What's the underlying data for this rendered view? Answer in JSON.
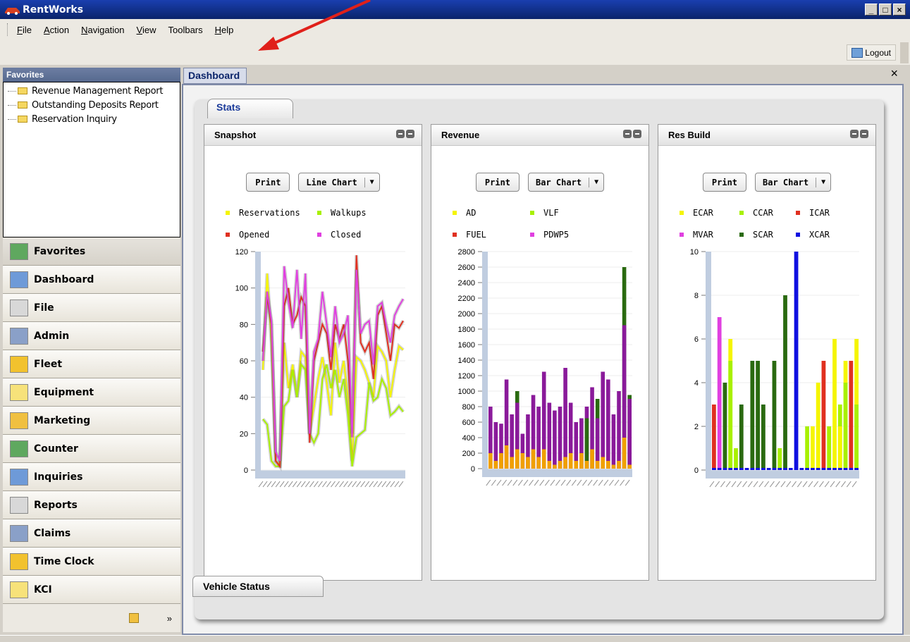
{
  "app": {
    "title": "RentWorks"
  },
  "window_controls": [
    "_",
    "□",
    "×"
  ],
  "menu": [
    {
      "label": "File",
      "u": "F",
      "rest": "ile"
    },
    {
      "label": "Action",
      "u": "A",
      "rest": "ction"
    },
    {
      "label": "Navigation",
      "u": "N",
      "rest": "avigation"
    },
    {
      "label": "View",
      "u": "V",
      "rest": "iew"
    },
    {
      "label": "Toolbars",
      "u": "",
      "rest": "Toolbars"
    },
    {
      "label": "Help",
      "u": "H",
      "rest": "elp"
    }
  ],
  "toolbar": {
    "logout_label": "Logout"
  },
  "favorites": {
    "header": "Favorites",
    "items": [
      "Revenue Management Report",
      "Outstanding Deposits Report",
      "Reservation Inquiry"
    ]
  },
  "nav": [
    {
      "label": "Favorites",
      "icon": "favorites-icon",
      "color": "#5fa85f",
      "active": true
    },
    {
      "label": "Dashboard",
      "icon": "calendar-icon",
      "color": "#6e9ad8"
    },
    {
      "label": "File",
      "icon": "checklist-icon",
      "color": "#d8d8d8"
    },
    {
      "label": "Admin",
      "icon": "user-list-icon",
      "color": "#8aa0c8"
    },
    {
      "label": "Fleet",
      "icon": "folder-icon",
      "color": "#f2c22e"
    },
    {
      "label": "Equipment",
      "icon": "note-icon",
      "color": "#f7e27a"
    },
    {
      "label": "Marketing",
      "icon": "marketing-icon",
      "color": "#f0c040"
    },
    {
      "label": "Counter",
      "icon": "counter-icon",
      "color": "#5fa85f"
    },
    {
      "label": "Inquiries",
      "icon": "calendar-icon",
      "color": "#6e9ad8"
    },
    {
      "label": "Reports",
      "icon": "checklist-icon",
      "color": "#d8d8d8"
    },
    {
      "label": "Claims",
      "icon": "user-list-icon",
      "color": "#8aa0c8"
    },
    {
      "label": "Time Clock",
      "icon": "folder-icon",
      "color": "#f2c22e"
    },
    {
      "label": "KCI",
      "icon": "note-icon",
      "color": "#f7e27a"
    }
  ],
  "nav_bottom": {
    "chevron": "»"
  },
  "main": {
    "tab_label": "Dashboard",
    "close_glyph": "×",
    "stats_tab": "Stats",
    "vehicle_status": "Vehicle Status"
  },
  "cards": [
    {
      "title": "Snapshot",
      "print_label": "Print",
      "chart_type_label": "Line Chart",
      "legend": [
        {
          "name": "Reservations",
          "color": "#f5f500"
        },
        {
          "name": "Walkups",
          "color": "#a8f000"
        },
        {
          "name": "Opened",
          "color": "#e03020"
        },
        {
          "name": "Closed",
          "color": "#e040e0"
        }
      ]
    },
    {
      "title": "Revenue",
      "print_label": "Print",
      "chart_type_label": "Bar Chart",
      "legend": [
        {
          "name": "AD",
          "color": "#f5f500"
        },
        {
          "name": "VLF",
          "color": "#a8f000"
        },
        {
          "name": "FUEL",
          "color": "#e03020"
        },
        {
          "name": "PDWP5",
          "color": "#e040e0"
        }
      ]
    },
    {
      "title": "Res Build",
      "print_label": "Print",
      "chart_type_label": "Bar Chart",
      "legend": [
        {
          "name": "ECAR",
          "color": "#f5f500"
        },
        {
          "name": "CCAR",
          "color": "#a8f000"
        },
        {
          "name": "ICAR",
          "color": "#e03020"
        },
        {
          "name": "MVAR",
          "color": "#e040e0"
        },
        {
          "name": "SCAR",
          "color": "#2a6a10"
        },
        {
          "name": "XCAR",
          "color": "#1010e0"
        }
      ]
    }
  ],
  "chart_data": [
    {
      "type": "line",
      "ylim": [
        0,
        120
      ],
      "yticks": [
        0,
        20,
        40,
        60,
        80,
        100,
        120
      ],
      "series": [
        {
          "name": "Reservations",
          "color": "#f5f500",
          "values": [
            55,
            108,
            70,
            5,
            3,
            70,
            45,
            58,
            40,
            65,
            62,
            20,
            35,
            50,
            62,
            48,
            30,
            70,
            48,
            60,
            40,
            5,
            62,
            60,
            55,
            48,
            40,
            68,
            65,
            60,
            40,
            55,
            68,
            66
          ]
        },
        {
          "name": "Walkups",
          "color": "#a8f000",
          "values": [
            28,
            25,
            5,
            2,
            2,
            35,
            38,
            55,
            40,
            58,
            55,
            20,
            15,
            20,
            50,
            58,
            45,
            55,
            40,
            50,
            30,
            2,
            18,
            20,
            22,
            48,
            38,
            40,
            50,
            45,
            30,
            32,
            35,
            32
          ]
        },
        {
          "name": "Opened",
          "color": "#e03020",
          "values": [
            65,
            95,
            80,
            5,
            2,
            90,
            100,
            80,
            85,
            95,
            90,
            15,
            60,
            70,
            80,
            75,
            55,
            80,
            72,
            80,
            60,
            20,
            118,
            70,
            65,
            70,
            50,
            85,
            90,
            75,
            60,
            80,
            78,
            82
          ]
        },
        {
          "name": "Closed",
          "color": "#e040e0",
          "values": [
            60,
            98,
            82,
            10,
            5,
            112,
            92,
            78,
            110,
            72,
            108,
            20,
            65,
            72,
            98,
            80,
            62,
            90,
            70,
            75,
            85,
            18,
            110,
            75,
            80,
            82,
            58,
            90,
            92,
            80,
            70,
            85,
            90,
            94
          ]
        }
      ]
    },
    {
      "type": "bar",
      "ylim": [
        0,
        2800
      ],
      "yticks": [
        0,
        200,
        400,
        600,
        800,
        1000,
        1200,
        1400,
        1600,
        1800,
        2000,
        2200,
        2400,
        2600,
        2800
      ],
      "series": [
        {
          "name": "AD",
          "color": "#f0a000",
          "values": [
            200,
            100,
            200,
            300,
            150,
            250,
            200,
            150,
            250,
            150,
            250,
            100,
            50,
            100,
            150,
            200,
            100,
            200,
            100,
            250,
            100,
            150,
            100,
            50,
            100,
            400,
            50
          ]
        },
        {
          "name": "PDWP5",
          "color": "#8a1a9a",
          "values": [
            800,
            600,
            580,
            1150,
            700,
            850,
            450,
            700,
            950,
            800,
            1250,
            850,
            750,
            800,
            1300,
            850,
            600,
            650,
            800,
            1050,
            650,
            1250,
            1150,
            700,
            1000,
            1850,
            900
          ]
        },
        {
          "name": "VLF",
          "color": "#2a6a10",
          "values": [
            0,
            0,
            0,
            0,
            0,
            1000,
            0,
            0,
            0,
            0,
            0,
            0,
            0,
            0,
            0,
            0,
            0,
            0,
            650,
            0,
            900,
            0,
            0,
            0,
            0,
            2600,
            950
          ]
        }
      ]
    },
    {
      "type": "bar",
      "ylim": [
        0,
        10
      ],
      "yticks": [
        0,
        2,
        4,
        6,
        8,
        10
      ],
      "series": [
        {
          "name": "ECAR",
          "color": "#f5f500",
          "values": [
            0,
            0,
            0,
            6,
            0,
            0,
            0,
            0,
            0,
            0,
            0,
            0,
            0,
            0,
            0,
            0,
            0,
            0,
            2,
            4,
            0,
            2,
            6,
            2,
            5,
            0,
            6
          ]
        },
        {
          "name": "CCAR",
          "color": "#a8f000",
          "values": [
            0,
            0,
            0,
            5,
            1,
            0,
            0,
            0,
            0,
            0,
            0,
            0,
            1,
            0,
            0,
            0,
            0,
            2,
            0,
            0,
            0,
            2,
            0,
            3,
            4,
            0,
            3
          ]
        },
        {
          "name": "ICAR",
          "color": "#e03020",
          "values": [
            3,
            0,
            0,
            0,
            0,
            0,
            0,
            0,
            0,
            0,
            0,
            0,
            0,
            0,
            0,
            0,
            0,
            0,
            0,
            0,
            5,
            0,
            0,
            0,
            0,
            5,
            0
          ]
        },
        {
          "name": "MVAR",
          "color": "#e040e0",
          "values": [
            0,
            7,
            0,
            0,
            0,
            0,
            0,
            0,
            0,
            0,
            0,
            0,
            0,
            0,
            0,
            0,
            0,
            0,
            0,
            0,
            0,
            0,
            0,
            0,
            0,
            0,
            0
          ]
        },
        {
          "name": "SCAR",
          "color": "#2a6a10",
          "values": [
            0,
            0,
            4,
            0,
            0,
            3,
            0,
            5,
            5,
            3,
            0,
            5,
            0,
            8,
            0,
            0,
            0,
            0,
            0,
            0,
            0,
            0,
            0,
            0,
            0,
            0,
            0
          ]
        },
        {
          "name": "XCAR",
          "color": "#1010e0",
          "values": [
            0,
            0,
            0,
            0,
            0,
            0,
            0,
            0,
            0,
            0,
            0,
            0,
            0,
            0,
            0,
            10,
            0,
            0,
            0,
            0,
            0,
            0,
            0,
            0,
            0,
            0,
            0
          ]
        }
      ]
    }
  ]
}
